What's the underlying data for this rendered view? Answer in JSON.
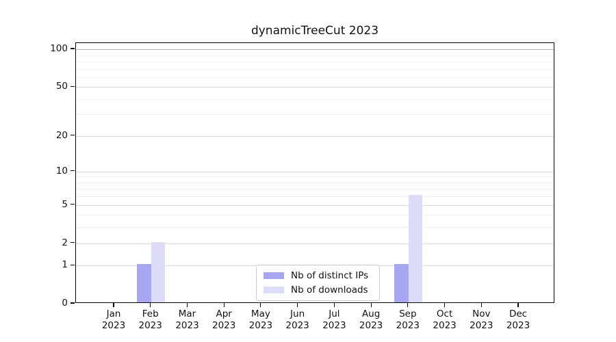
{
  "chart_data": {
    "type": "bar",
    "title": "dynamicTreeCut 2023",
    "categories": [
      {
        "month": "Jan",
        "year": "2023"
      },
      {
        "month": "Feb",
        "year": "2023"
      },
      {
        "month": "Mar",
        "year": "2023"
      },
      {
        "month": "Apr",
        "year": "2023"
      },
      {
        "month": "May",
        "year": "2023"
      },
      {
        "month": "Jun",
        "year": "2023"
      },
      {
        "month": "Jul",
        "year": "2023"
      },
      {
        "month": "Aug",
        "year": "2023"
      },
      {
        "month": "Sep",
        "year": "2023"
      },
      {
        "month": "Oct",
        "year": "2023"
      },
      {
        "month": "Nov",
        "year": "2023"
      },
      {
        "month": "Dec",
        "year": "2023"
      }
    ],
    "series": [
      {
        "name": "Nb of distinct IPs",
        "color": "#a8a8f2",
        "values": [
          0,
          1,
          0,
          0,
          0,
          0,
          0,
          0,
          1,
          0,
          0,
          0
        ]
      },
      {
        "name": "Nb of downloads",
        "color": "#dcdcf8",
        "values": [
          0,
          2,
          0,
          0,
          0,
          0,
          0,
          0,
          6,
          0,
          0,
          0
        ]
      }
    ],
    "y_scale": "log1p",
    "ylim": [
      0,
      112
    ],
    "y_ticks": [
      0,
      1,
      2,
      5,
      10,
      20,
      50,
      100
    ],
    "y_minor_ticks": [
      3,
      4,
      6,
      7,
      8,
      9,
      30,
      40,
      60,
      70,
      80,
      90
    ],
    "grid": true,
    "legend_position": "lower center",
    "colors": {
      "major_grid": "#dadada",
      "minor_grid": "#f0f0f0",
      "top_grid": "#b4b4b4",
      "spine": "#000000",
      "background": "#ffffff"
    }
  }
}
